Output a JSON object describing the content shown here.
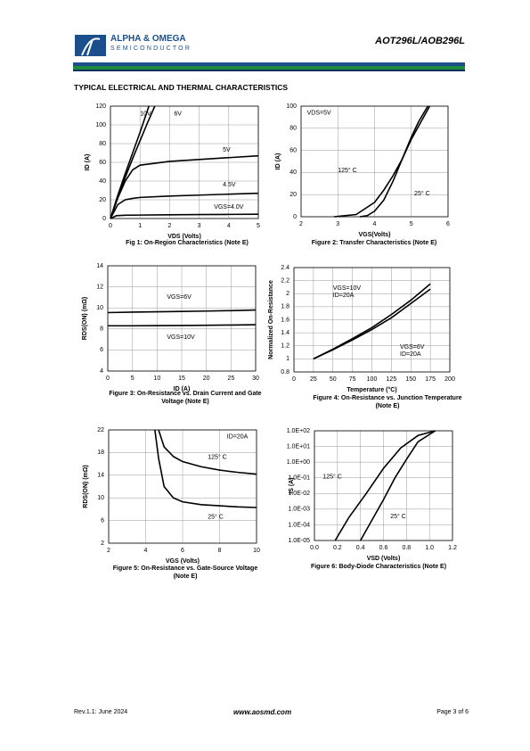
{
  "header": {
    "company": "ALPHA & OMEGA",
    "division": "SEMICONDUCTOR",
    "part": "AOT296L/AOB296L"
  },
  "section_title": "TYPICAL ELECTRICAL AND THERMAL CHARACTERISTICS",
  "footer": {
    "revision": "Rev.1.1: June 2024",
    "website": "www.aosmd.com",
    "page": "Page 3 of 6"
  },
  "chart_data": [
    {
      "type": "line",
      "caption": "Fig 1: On-Region Characteristics (Note E)",
      "xlabel": "VDS (Volts)",
      "ylabel": "ID (A)",
      "xlim": [
        0,
        5
      ],
      "xticks": [
        0,
        1,
        2,
        3,
        4,
        5
      ],
      "ylim": [
        0,
        120
      ],
      "yticks": [
        0,
        20,
        40,
        60,
        80,
        100,
        120
      ],
      "grid": true,
      "series": [
        {
          "name": "10V",
          "color": "#000",
          "x": [
            0,
            0.25,
            0.5,
            0.75,
            1,
            1.3
          ],
          "values": [
            0,
            25,
            48,
            70,
            92,
            120
          ]
        },
        {
          "name": "6V",
          "color": "#000",
          "x": [
            0,
            0.25,
            0.5,
            0.75,
            1,
            1.25,
            1.5
          ],
          "values": [
            0,
            23,
            44,
            64,
            83,
            102,
            120
          ]
        },
        {
          "name": "5V",
          "color": "#000",
          "x": [
            0,
            0.25,
            0.5,
            0.75,
            1,
            1.5,
            2,
            3,
            4,
            5
          ],
          "values": [
            0,
            22,
            40,
            52,
            57,
            59,
            61,
            63,
            65,
            67
          ]
        },
        {
          "name": "4.5V",
          "color": "#000",
          "x": [
            0,
            0.25,
            0.5,
            0.75,
            1,
            2,
            3,
            4,
            5
          ],
          "values": [
            0,
            15,
            20,
            21.5,
            22.5,
            24,
            25,
            26,
            27
          ]
        },
        {
          "name": "VGS=4.0V",
          "color": "#000",
          "x": [
            0,
            0.2,
            0.5,
            1,
            2,
            3,
            4,
            5
          ],
          "values": [
            0,
            3,
            3.5,
            3.7,
            4,
            4.2,
            4.4,
            4.6
          ]
        }
      ]
    },
    {
      "type": "line",
      "caption": "Figure 2: Transfer Characteristics (Note E)",
      "xlabel": "VGS(Volts)",
      "ylabel": "ID (A)",
      "annotations": [
        "VDS=5V"
      ],
      "xlim": [
        2,
        6
      ],
      "xticks": [
        2,
        3,
        4,
        5,
        6
      ],
      "ylim": [
        0,
        100
      ],
      "yticks": [
        0,
        20,
        40,
        60,
        80,
        100
      ],
      "grid": true,
      "series": [
        {
          "name": "125° C",
          "color": "#000",
          "x": [
            2.9,
            3.5,
            4,
            4.25,
            4.5,
            4.75,
            5,
            5.25,
            5.5
          ],
          "values": [
            0,
            2,
            13,
            24,
            37,
            52,
            70,
            85,
            100
          ]
        },
        {
          "name": "25° C",
          "color": "#000",
          "x": [
            3.6,
            3.8,
            4,
            4.25,
            4.5,
            4.75,
            5,
            5.2,
            5.45
          ],
          "values": [
            0,
            1,
            5,
            15,
            32,
            52,
            72,
            86,
            100
          ]
        }
      ]
    },
    {
      "type": "line",
      "caption": "Figure 3: On-Resistance vs. Drain Current and Gate Voltage (Note E)",
      "xlabel": "ID (A)",
      "ylabel": "RDS(ON) (mΩ)",
      "xlim": [
        0,
        30
      ],
      "xticks": [
        0,
        5,
        10,
        15,
        20,
        25,
        30
      ],
      "ylim": [
        4,
        14
      ],
      "yticks": [
        4,
        6,
        8,
        10,
        12,
        14
      ],
      "grid": true,
      "series": [
        {
          "name": "VGS=6V",
          "color": "#000",
          "x": [
            0,
            5,
            10,
            15,
            20,
            25,
            30
          ],
          "values": [
            9.55,
            9.6,
            9.63,
            9.66,
            9.7,
            9.74,
            9.8
          ]
        },
        {
          "name": "VGS=10V",
          "color": "#000",
          "x": [
            0,
            5,
            10,
            15,
            20,
            25,
            30
          ],
          "values": [
            8.3,
            8.3,
            8.32,
            8.33,
            8.35,
            8.37,
            8.4
          ]
        }
      ]
    },
    {
      "type": "line",
      "caption": "Figure 4: On-Resistance vs. Junction Temperature (Note E)",
      "xlabel": "Temperature (°C)",
      "ylabel": "Normalized On-Resistance",
      "xlim": [
        0,
        200
      ],
      "xticks": [
        0,
        25,
        50,
        75,
        100,
        125,
        150,
        175,
        200
      ],
      "ylim": [
        0.8,
        2.4
      ],
      "yticks": [
        0.8,
        1,
        1.2,
        1.4,
        1.6,
        1.8,
        2,
        2.2,
        2.4
      ],
      "grid": true,
      "series": [
        {
          "name": "VGS=10V",
          "sublabel": "ID=20A",
          "color": "#000",
          "x": [
            25,
            50,
            75,
            100,
            125,
            150,
            175
          ],
          "values": [
            1,
            1.15,
            1.31,
            1.48,
            1.68,
            1.9,
            2.15
          ]
        },
        {
          "name": "VGS=6V",
          "sublabel": "ID=20A",
          "color": "#000",
          "x": [
            25,
            50,
            75,
            100,
            125,
            150,
            175
          ],
          "values": [
            1,
            1.14,
            1.29,
            1.45,
            1.63,
            1.85,
            2.07
          ]
        }
      ]
    },
    {
      "type": "line",
      "caption": "Figure 5: On-Resistance vs. Gate-Source Voltage (Note E)",
      "xlabel": "VGS (Volts)",
      "ylabel": "RDS(ON) (mΩ)",
      "annotations": [
        "ID=20A"
      ],
      "xlim": [
        2,
        10
      ],
      "xticks": [
        2,
        4,
        6,
        8,
        10
      ],
      "ylim": [
        2,
        22
      ],
      "yticks": [
        2,
        6,
        10,
        14,
        18,
        22
      ],
      "grid": true,
      "series": [
        {
          "name": "125° C",
          "color": "#000",
          "x": [
            4.7,
            5,
            5.5,
            6,
            7,
            8,
            9,
            10
          ],
          "values": [
            22,
            19,
            17.3,
            16.4,
            15.5,
            14.9,
            14.5,
            14.2
          ]
        },
        {
          "name": "25° C",
          "color": "#000",
          "x": [
            4.5,
            4.7,
            5,
            5.5,
            6,
            7,
            8,
            9,
            10
          ],
          "values": [
            22,
            17,
            12,
            10,
            9.3,
            8.8,
            8.6,
            8.4,
            8.3
          ]
        }
      ]
    },
    {
      "type": "line",
      "caption": "Figure 6: Body-Diode Characteristics (Note E)",
      "xlabel": "VSD (Volts)",
      "ylabel": "IS (A)",
      "ylog": true,
      "xlim": [
        0,
        1.2
      ],
      "xticks": [
        {
          "value": 0,
          "label": "0.0"
        },
        0.2,
        0.4,
        0.6,
        0.8,
        {
          "value": 1,
          "label": "1.0"
        },
        1.2
      ],
      "ylim": [
        1e-05,
        100
      ],
      "yticks": [
        {
          "value": 1e-05,
          "label": "1.0E-05"
        },
        {
          "value": 0.0001,
          "label": "1.0E-04"
        },
        {
          "value": 0.001,
          "label": "1.0E-03"
        },
        {
          "value": 0.01,
          "label": "1.0E-02"
        },
        {
          "value": 0.1,
          "label": "1.0E-01"
        },
        {
          "value": 1,
          "label": "1.0E+00"
        },
        {
          "value": 10,
          "label": "1.0E+01"
        },
        {
          "value": 100,
          "label": "1.0E+02"
        }
      ],
      "grid": true,
      "series": [
        {
          "name": "125° C",
          "color": "#000",
          "x": [
            0.18,
            0.3,
            0.45,
            0.6,
            0.75,
            0.9,
            1.05
          ],
          "values": [
            1e-05,
            0.0003,
            0.01,
            0.4,
            8,
            50,
            100
          ]
        },
        {
          "name": "25° C",
          "color": "#000",
          "x": [
            0.4,
            0.5,
            0.6,
            0.7,
            0.8,
            0.9,
            1.05
          ],
          "values": [
            1e-05,
            0.0002,
            0.004,
            0.1,
            1.5,
            20,
            100
          ]
        }
      ]
    }
  ]
}
